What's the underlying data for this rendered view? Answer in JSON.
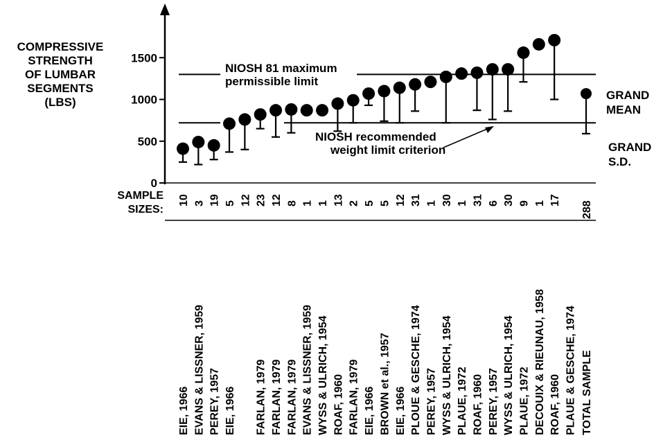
{
  "y_label_lines": [
    "COMPRESSIVE",
    "STRENGTH",
    "OF LUMBAR",
    "SEGMENTS",
    "(LBS)"
  ],
  "sample_sizes_label_lines": [
    "SAMPLE",
    "SIZES:"
  ],
  "grand_mean_lines": [
    "GRAND",
    "MEAN"
  ],
  "grand_sd_lines": [
    "GRAND",
    "S.D."
  ],
  "annotations": {
    "niosh81": [
      "NIOSH 81 maximum",
      "permissible limit"
    ],
    "niosh_rec": [
      "NIOSH recommended",
      "weight limit criterion"
    ]
  },
  "chart_data": {
    "type": "scatter",
    "ylim": [
      0,
      1900
    ],
    "yticks": [
      0,
      500,
      1000,
      1500
    ],
    "reference_lines": [
      {
        "label": "NIOSH 81 maximum permissible limit",
        "value": 1300
      },
      {
        "label": "NIOSH recommended weight limit criterion",
        "value": 720
      }
    ],
    "points": [
      {
        "study": "EIE, 1966",
        "n": "10",
        "mean": 410,
        "lower": 250
      },
      {
        "study": "EVANS & LISSNER, 1959",
        "n": "3",
        "mean": 490,
        "lower": 220
      },
      {
        "study": "PEREY, 1957",
        "n": "19",
        "mean": 450,
        "lower": 280
      },
      {
        "study": "EIE, 1966",
        "n": "5",
        "mean": 710,
        "lower": 370
      },
      {
        "study": "",
        "n": "12",
        "mean": 760,
        "lower": 400
      },
      {
        "study": "FARLAN, 1979",
        "n": "23",
        "mean": 820,
        "lower": 650
      },
      {
        "study": "FARLAN, 1979",
        "n": "12",
        "mean": 870,
        "lower": 550
      },
      {
        "study": "FARLAN, 1979",
        "n": "8",
        "mean": 880,
        "lower": 600
      },
      {
        "study": "EVANS & LISSNER, 1959",
        "n": "1",
        "mean": 870,
        "lower": null
      },
      {
        "study": "WYSS & ULRICH, 1954",
        "n": "1",
        "mean": 870,
        "lower": null
      },
      {
        "study": "ROAF, 1960",
        "n": "13",
        "mean": 950,
        "lower": 620
      },
      {
        "study": "FARLAN, 1979",
        "n": "2",
        "mean": 990,
        "lower": 720
      },
      {
        "study": "EIE, 1966",
        "n": "5",
        "mean": 1070,
        "lower": 930
      },
      {
        "study": "BROWN et al., 1957",
        "n": "5",
        "mean": 1100,
        "lower": 740
      },
      {
        "study": "EIE, 1966",
        "n": "12",
        "mean": 1140,
        "lower": 720
      },
      {
        "study": "PLOUE & GESCHE, 1974",
        "n": "31",
        "mean": 1180,
        "lower": 860
      },
      {
        "study": "PEREY, 1957",
        "n": "1",
        "mean": 1210,
        "lower": null
      },
      {
        "study": "WYSS & ULRICH, 1954",
        "n": "30",
        "mean": 1270,
        "lower": 720
      },
      {
        "study": "PLAUE, 1972",
        "n": "1",
        "mean": 1310,
        "lower": null
      },
      {
        "study": "ROAF, 1960",
        "n": "31",
        "mean": 1320,
        "lower": 870
      },
      {
        "study": "PEREY, 1957",
        "n": "6",
        "mean": 1360,
        "lower": 760
      },
      {
        "study": "WYSS & ULRICH, 1954",
        "n": "30",
        "mean": 1360,
        "lower": 860
      },
      {
        "study": "PLAUE, 1972",
        "n": "9",
        "mean": 1560,
        "lower": 1210
      },
      {
        "study": "DECOUIX & RIEUNAU, 1958",
        "n": "1",
        "mean": 1660,
        "lower": null
      },
      {
        "study": "ROAF, 1960",
        "n": "17",
        "mean": 1710,
        "lower": 1000
      },
      {
        "study": "PLAUE & GESCHE, 1974",
        "n": "",
        "mean": null,
        "lower": null
      },
      {
        "study": "TOTAL SAMPLE",
        "n": "288",
        "mean": 1070,
        "lower": 590
      }
    ]
  }
}
